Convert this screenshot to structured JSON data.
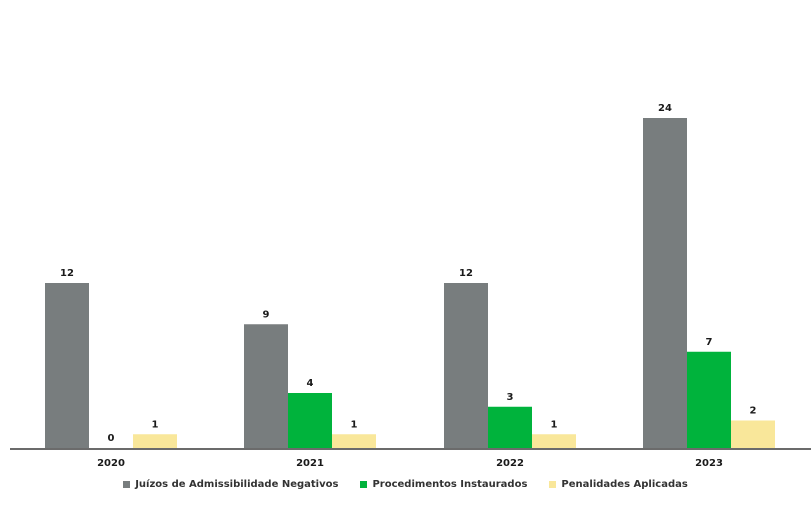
{
  "chart_data": {
    "type": "bar",
    "categories": [
      "2020",
      "2021",
      "2022",
      "2023"
    ],
    "series": [
      {
        "name": "Juízos de Admissibilidade Negativos",
        "values": [
          12,
          9,
          12,
          24
        ],
        "color": "#787d7e"
      },
      {
        "name": "Procedimentos Instaurados",
        "values": [
          0,
          4,
          3,
          7
        ],
        "color": "#00b33c"
      },
      {
        "name": "Penalidades Aplicadas",
        "values": [
          1,
          1,
          1,
          2
        ],
        "color": "#f9e79a"
      }
    ],
    "title": "",
    "xlabel": "",
    "ylabel": "",
    "ylim": [
      0,
      24
    ],
    "grid": false,
    "legend_position": "bottom-center"
  }
}
